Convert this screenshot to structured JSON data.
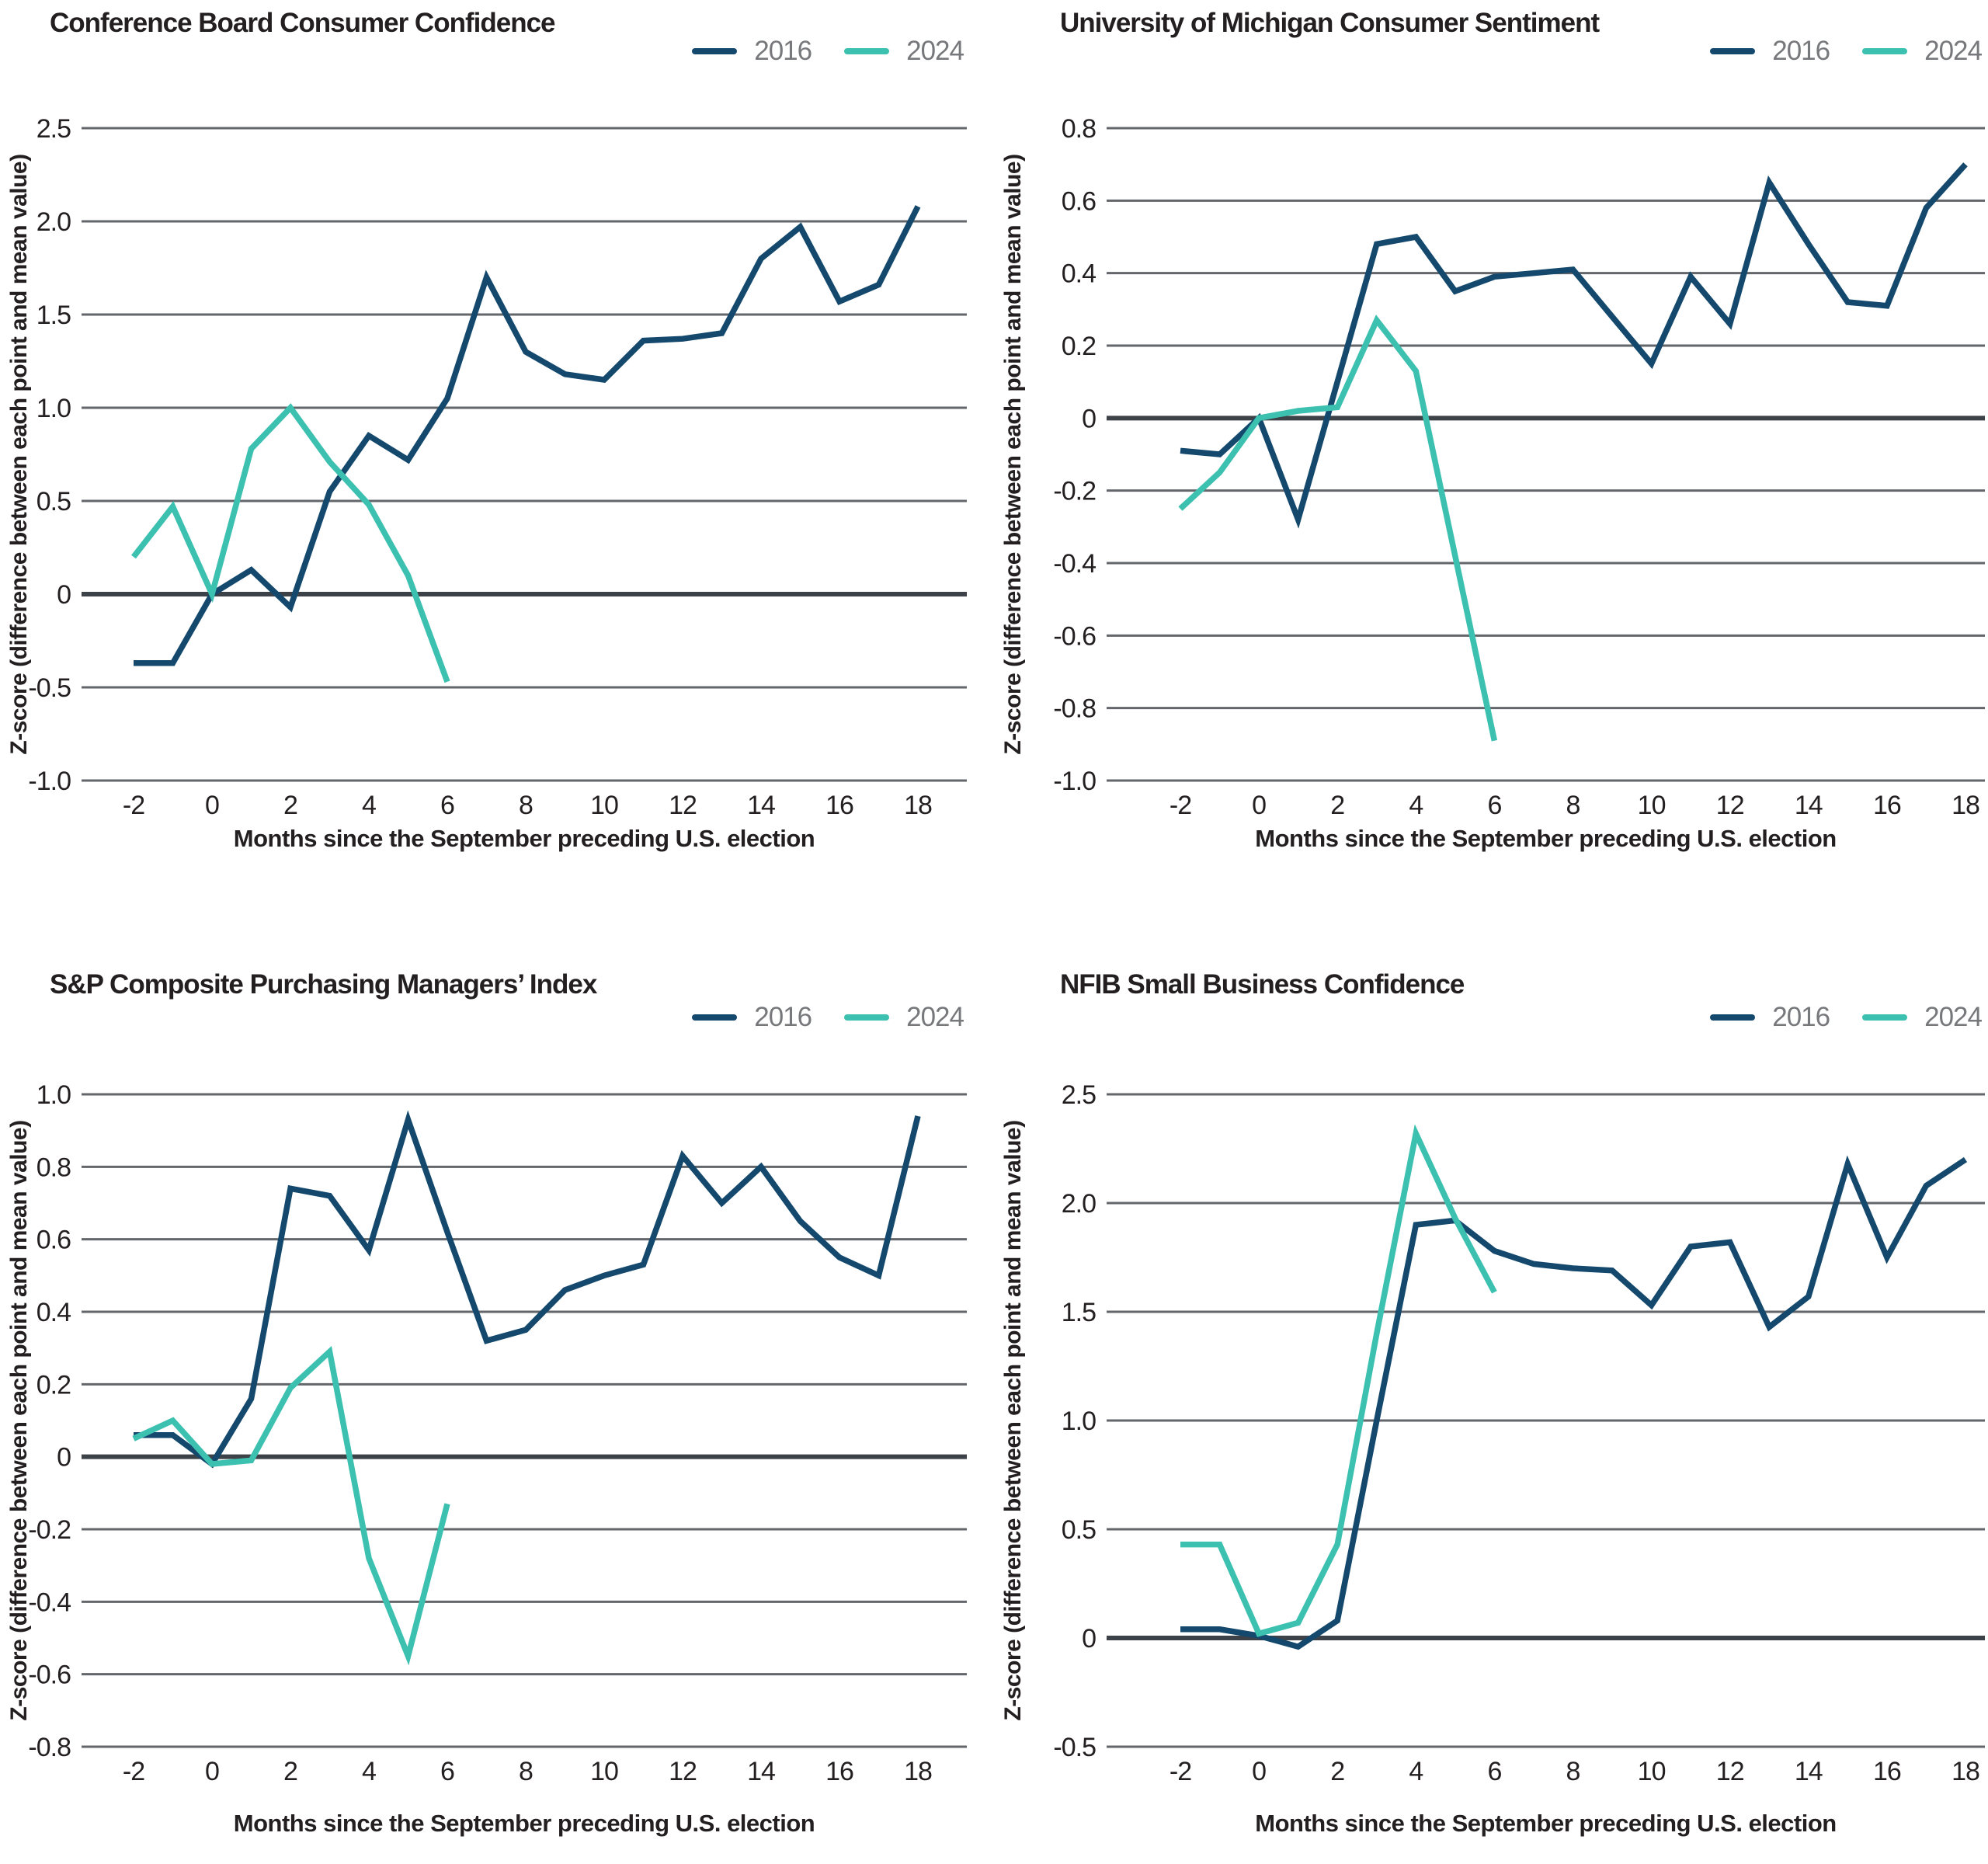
{
  "page": {
    "background": "#ffffff"
  },
  "colors": {
    "series_2016": "#14496d",
    "series_2024": "#3cc0af",
    "gridline": "#63666a",
    "zero_line": "#3c4247",
    "title_text": "#231f20",
    "tick_text": "#231f20",
    "legend_text": "#77787b"
  },
  "legend": {
    "items": [
      {
        "label": "2016"
      },
      {
        "label": "2024"
      }
    ]
  },
  "axes": {
    "x_label": "Months since the September preceding U.S. election",
    "y_label": "Z-score (difference between each point and mean value)",
    "x_ticks": [
      -2,
      0,
      2,
      4,
      6,
      8,
      10,
      12,
      14,
      16,
      18
    ]
  },
  "chart_data": [
    {
      "type": "line",
      "title": "Conference Board Consumer Confidence",
      "xlabel": "Months since the September preceding U.S. election",
      "ylabel": "Z-score (difference between each point and mean value)",
      "xlim": [
        -2,
        18
      ],
      "ylim": [
        -1.0,
        2.5
      ],
      "yticks": [
        2.5,
        2.0,
        1.5,
        1.0,
        0.5,
        0,
        -0.5,
        -1.0
      ],
      "grid": "horizontal",
      "legend_position": "top-right",
      "series": [
        {
          "name": "2016",
          "x": [
            -2,
            -1,
            0,
            1,
            2,
            3,
            4,
            5,
            6,
            7,
            8,
            9,
            10,
            11,
            12,
            13,
            14,
            15,
            16,
            17,
            18
          ],
          "values": [
            -0.37,
            -0.37,
            0.0,
            0.13,
            -0.07,
            0.55,
            0.85,
            0.72,
            1.05,
            1.7,
            1.3,
            1.18,
            1.15,
            1.36,
            1.37,
            1.4,
            1.8,
            1.97,
            1.57,
            1.66,
            2.08
          ]
        },
        {
          "name": "2024",
          "x": [
            -2,
            -1,
            0,
            1,
            2,
            3,
            4,
            5,
            6
          ],
          "values": [
            0.2,
            0.47,
            0.0,
            0.78,
            1.0,
            0.71,
            0.48,
            0.1,
            -0.47
          ]
        }
      ]
    },
    {
      "type": "line",
      "title": "University of Michigan Consumer Sentiment",
      "xlabel": "Months since the September preceding U.S. election",
      "ylabel": "Z-score (difference between each point and mean value)",
      "xlim": [
        -2,
        18
      ],
      "ylim": [
        -1.0,
        0.8
      ],
      "yticks": [
        0.8,
        0.6,
        0.4,
        0.2,
        0,
        -0.2,
        -0.4,
        -0.6,
        -0.8,
        -1.0
      ],
      "grid": "horizontal",
      "legend_position": "top-right",
      "series": [
        {
          "name": "2016",
          "x": [
            -2,
            -1,
            0,
            1,
            2,
            3,
            4,
            5,
            6,
            7,
            8,
            9,
            10,
            11,
            12,
            13,
            14,
            15,
            16,
            17,
            18
          ],
          "values": [
            -0.09,
            -0.1,
            0.0,
            -0.28,
            0.1,
            0.48,
            0.5,
            0.35,
            0.39,
            0.4,
            0.41,
            0.28,
            0.15,
            0.39,
            0.26,
            0.65,
            0.48,
            0.32,
            0.31,
            0.58,
            0.7
          ]
        },
        {
          "name": "2024",
          "x": [
            -2,
            -1,
            0,
            1,
            2,
            3,
            4,
            5,
            6
          ],
          "values": [
            -0.25,
            -0.15,
            0.0,
            0.02,
            0.03,
            0.27,
            0.13,
            -0.38,
            -0.89
          ]
        }
      ]
    },
    {
      "type": "line",
      "title": "S&P Composite Purchasing Managers’ Index",
      "xlabel": "Months since the September preceding U.S. election",
      "ylabel": "Z-score (difference between each point and mean value)",
      "xlim": [
        -2,
        18
      ],
      "ylim": [
        -0.8,
        1.0
      ],
      "yticks": [
        1.0,
        0.8,
        0.6,
        0.4,
        0.2,
        0,
        -0.2,
        -0.4,
        -0.6,
        -0.8
      ],
      "grid": "horizontal",
      "legend_position": "top-right",
      "series": [
        {
          "name": "2016",
          "x": [
            -2,
            -1,
            0,
            1,
            2,
            3,
            4,
            5,
            6,
            7,
            8,
            9,
            10,
            11,
            12,
            13,
            14,
            15,
            16,
            17,
            18
          ],
          "values": [
            0.06,
            0.06,
            -0.02,
            0.16,
            0.74,
            0.72,
            0.57,
            0.93,
            0.62,
            0.32,
            0.35,
            0.46,
            0.5,
            0.53,
            0.83,
            0.7,
            0.8,
            0.65,
            0.55,
            0.5,
            0.94
          ]
        },
        {
          "name": "2024",
          "x": [
            -2,
            -1,
            0,
            1,
            2,
            3,
            4,
            5,
            6
          ],
          "values": [
            0.05,
            0.1,
            -0.02,
            -0.01,
            0.19,
            0.29,
            -0.28,
            -0.55,
            -0.13
          ]
        }
      ]
    },
    {
      "type": "line",
      "title": "NFIB Small Business Confidence",
      "xlabel": "Months since the September preceding U.S. election",
      "ylabel": "Z-score (difference between each point and mean value)",
      "xlim": [
        -2,
        18
      ],
      "ylim": [
        -0.5,
        2.5
      ],
      "yticks": [
        2.5,
        2.0,
        1.5,
        1.0,
        0.5,
        0,
        -0.5
      ],
      "grid": "horizontal",
      "legend_position": "top-right",
      "series": [
        {
          "name": "2016",
          "x": [
            -2,
            -1,
            0,
            1,
            2,
            3,
            4,
            5,
            6,
            7,
            8,
            9,
            10,
            11,
            12,
            13,
            14,
            15,
            16,
            17,
            18
          ],
          "values": [
            0.04,
            0.04,
            0.01,
            -0.04,
            0.08,
            1.0,
            1.9,
            1.92,
            1.78,
            1.72,
            1.7,
            1.69,
            1.53,
            1.8,
            1.82,
            1.43,
            1.57,
            2.18,
            1.75,
            2.08,
            2.2
          ]
        },
        {
          "name": "2024",
          "x": [
            -2,
            -1,
            0,
            1,
            2,
            3,
            4,
            5,
            6
          ],
          "values": [
            0.43,
            0.43,
            0.02,
            0.07,
            0.43,
            1.4,
            2.32,
            1.93,
            1.59
          ]
        }
      ]
    }
  ]
}
